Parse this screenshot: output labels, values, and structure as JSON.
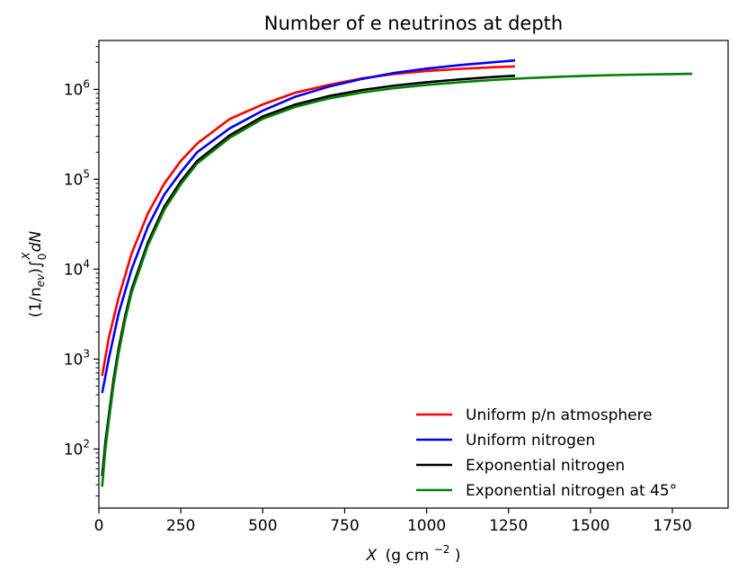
{
  "chart_data": {
    "type": "line",
    "title": "Number of e neutrinos at depth",
    "xlabel_base": "X",
    "xlabel_unit": "(g cm",
    "xlabel_exp": "−2",
    "xlabel_close": ")",
    "ylabel_prefix": "(1/n",
    "ylabel_sub": "ev",
    "ylabel_mid": ")∫",
    "ylabel_lower": "0",
    "ylabel_upper": "X",
    "ylabel_suffix": "dN",
    "yscale": "log",
    "xlim": [
      0,
      1920
    ],
    "ylim": [
      22,
      3500000
    ],
    "x_ticks": [
      0,
      250,
      500,
      750,
      1000,
      1250,
      1500,
      1750
    ],
    "x_tick_labels": [
      "0",
      "250",
      "500",
      "750",
      "1000",
      "1250",
      "1500",
      "1750"
    ],
    "y_ticks": [
      100,
      1000,
      10000,
      100000,
      1000000
    ],
    "y_tick_base": "10",
    "y_tick_exps": [
      "2",
      "3",
      "4",
      "5",
      "6"
    ],
    "legend_position": "lower-right",
    "series": [
      {
        "name": "Uniform p/n atmosphere",
        "color": "#ff0000",
        "x": [
          10,
          30,
          60,
          100,
          150,
          200,
          250,
          300,
          400,
          500,
          600,
          700,
          800,
          900,
          1000,
          1100,
          1200,
          1270
        ],
        "y": [
          650,
          1700,
          4800,
          15000,
          42000,
          90000,
          160000,
          250000,
          470000,
          680000,
          920000,
          1120000,
          1320000,
          1480000,
          1600000,
          1690000,
          1760000,
          1800000
        ]
      },
      {
        "name": "Uniform nitrogen",
        "color": "#0000ff",
        "x": [
          10,
          30,
          60,
          100,
          150,
          200,
          250,
          300,
          400,
          500,
          600,
          700,
          800,
          900,
          1000,
          1100,
          1200,
          1270
        ],
        "y": [
          420,
          1000,
          3200,
          10000,
          30000,
          68000,
          120000,
          200000,
          370000,
          580000,
          830000,
          1070000,
          1300000,
          1520000,
          1700000,
          1860000,
          2000000,
          2100000
        ]
      },
      {
        "name": "Exponential nitrogen",
        "color": "#000000",
        "x": [
          10,
          20,
          30,
          45,
          60,
          80,
          100,
          150,
          200,
          250,
          300,
          400,
          500,
          600,
          700,
          800,
          900,
          1000,
          1100,
          1200,
          1270
        ],
        "y": [
          50,
          120,
          230,
          600,
          1300,
          3000,
          6000,
          20000,
          50000,
          95000,
          160000,
          310000,
          500000,
          680000,
          840000,
          980000,
          1100000,
          1200000,
          1290000,
          1370000,
          1420000
        ]
      },
      {
        "name": "Exponential nitrogen at 45°",
        "color": "#008000",
        "x": [
          10,
          20,
          30,
          45,
          60,
          80,
          100,
          150,
          200,
          250,
          300,
          400,
          500,
          600,
          700,
          800,
          900,
          1000,
          1100,
          1200,
          1300,
          1400,
          1500,
          1600,
          1700,
          1810
        ],
        "y": [
          38,
          100,
          200,
          520,
          1150,
          2700,
          5500,
          18500,
          46000,
          88000,
          150000,
          290000,
          470000,
          640000,
          790000,
          920000,
          1030000,
          1120000,
          1200000,
          1270000,
          1330000,
          1380000,
          1420000,
          1450000,
          1470000,
          1490000
        ]
      }
    ]
  }
}
